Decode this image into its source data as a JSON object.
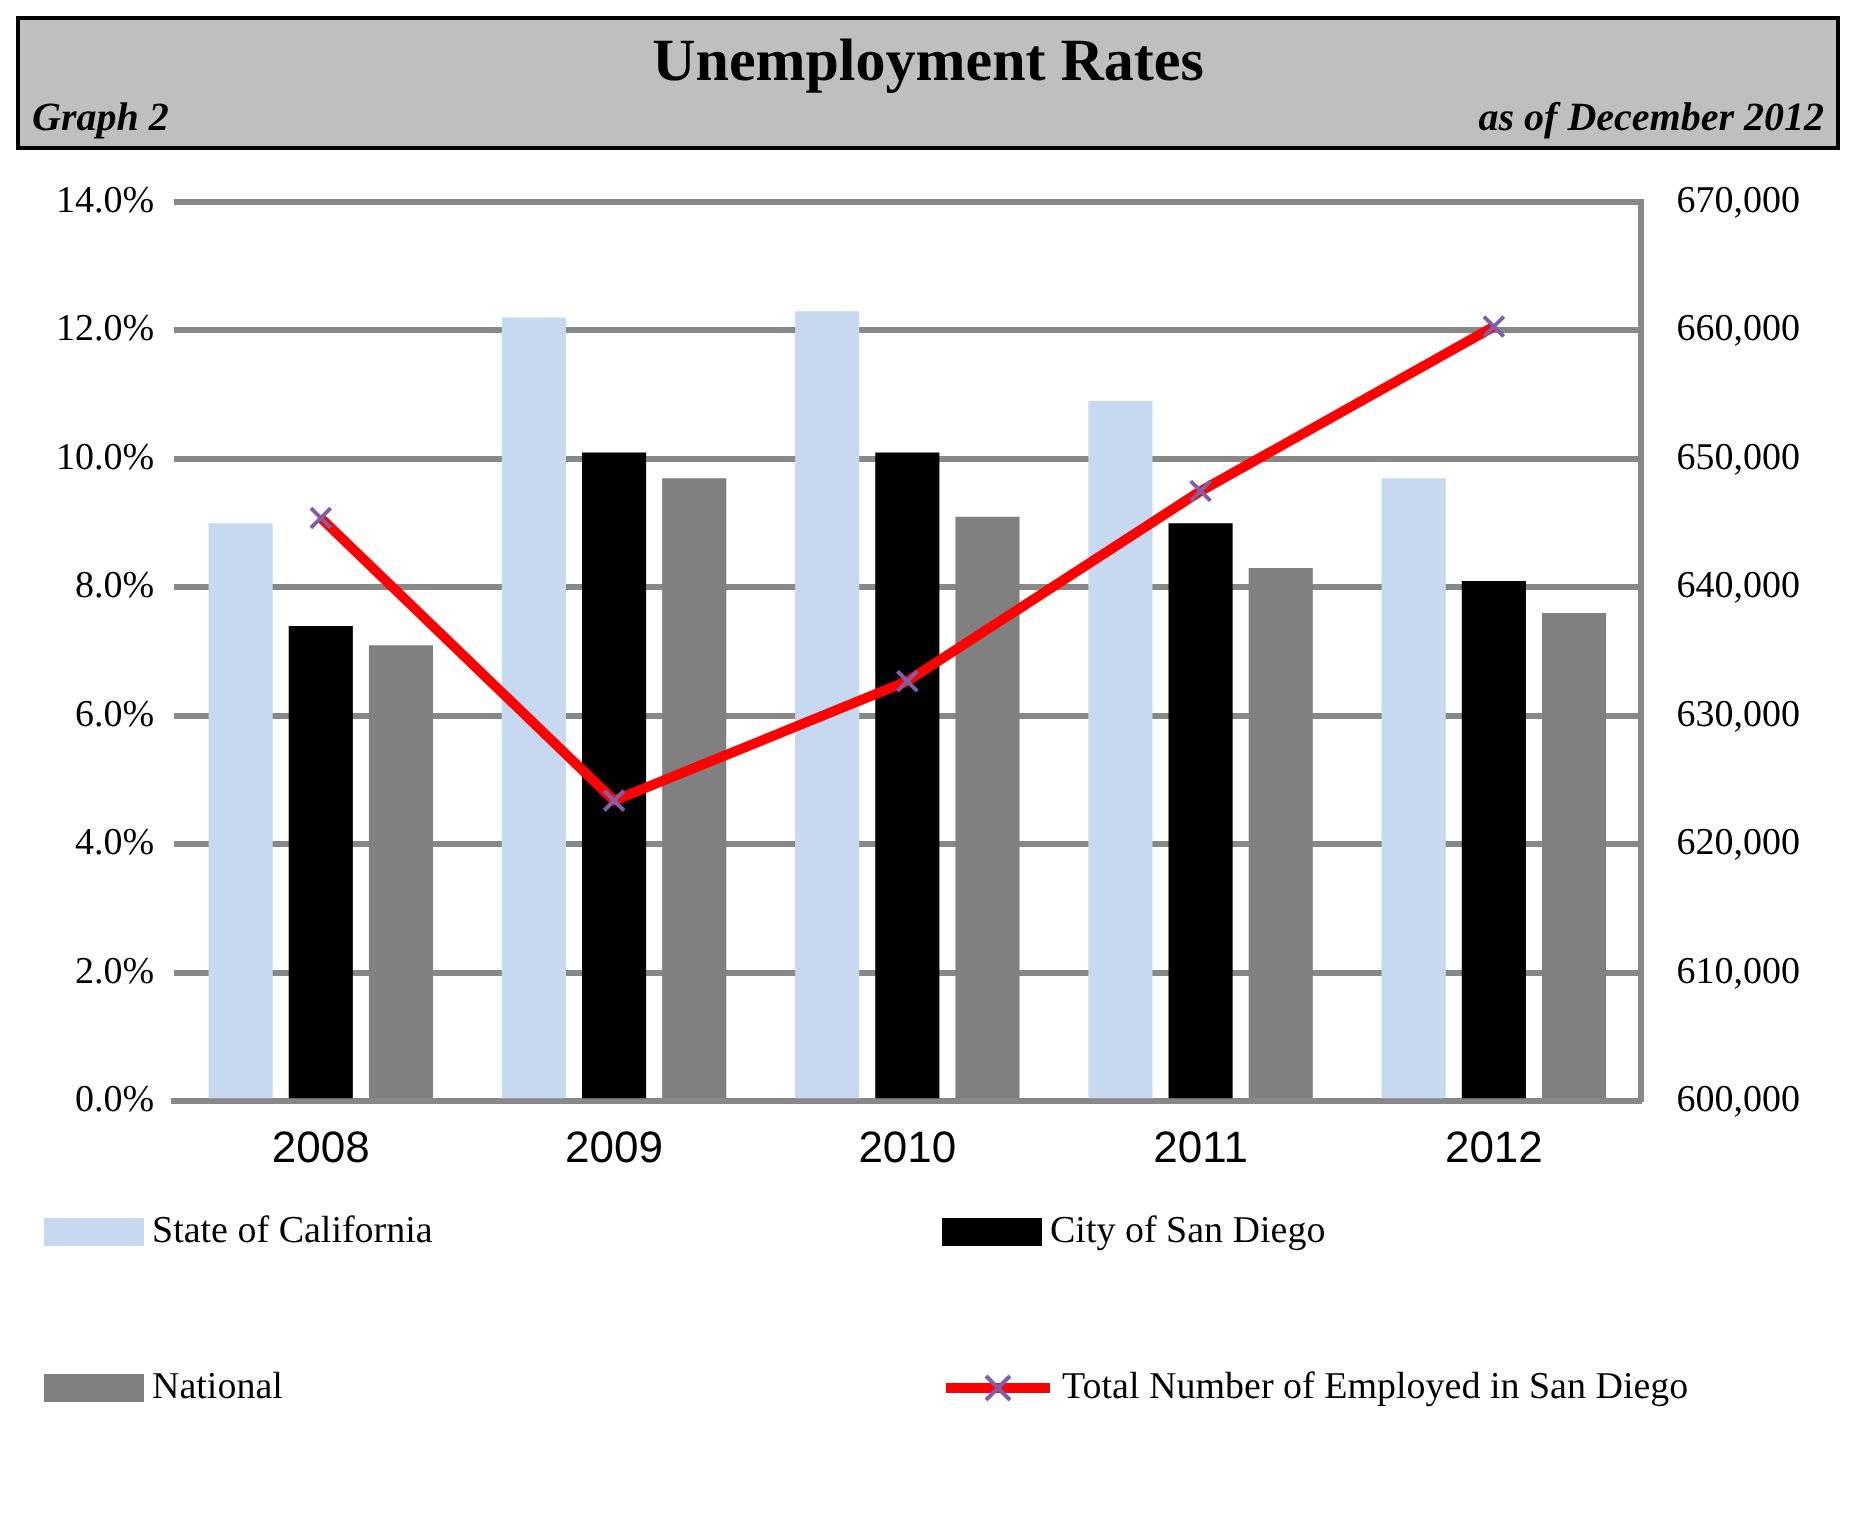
{
  "chart_data": {
    "type": "bar",
    "title": "Unemployment Rates",
    "subtitle": "Graph 2",
    "annotations": [
      "as of December 2012"
    ],
    "categories": [
      "2008",
      "2009",
      "2010",
      "2011",
      "2012"
    ],
    "series": [
      {
        "name": "State of California",
        "color": "#c6d9f1",
        "values": [
          9.0,
          12.2,
          12.3,
          10.9,
          9.7
        ]
      },
      {
        "name": "City of San Diego",
        "color": "#000000",
        "values": [
          7.4,
          10.1,
          10.1,
          9.0,
          8.1
        ]
      },
      {
        "name": "National",
        "color": "#808080",
        "values": [
          7.1,
          9.7,
          9.1,
          8.3,
          7.6
        ]
      },
      {
        "name": "Total Number of Employed in San Diego",
        "type": "line",
        "axis": "y2",
        "color": "#ff0000",
        "marker": "cross",
        "values": [
          645400,
          623400,
          632700,
          647500,
          660300
        ]
      }
    ],
    "ylim": [
      0,
      14
    ],
    "yticks": [
      {
        "value": 0,
        "label": "0.0%"
      },
      {
        "value": 2,
        "label": "2.0%"
      },
      {
        "value": 4,
        "label": "4.0%"
      },
      {
        "value": 6,
        "label": "6.0%"
      },
      {
        "value": 8,
        "label": "8.0%"
      },
      {
        "value": 10,
        "label": "10.0%"
      },
      {
        "value": 12,
        "label": "12.0%"
      },
      {
        "value": 14,
        "label": "14.0%"
      }
    ],
    "y2lim": [
      600000,
      670000
    ],
    "y2ticks": [
      {
        "value": 600000,
        "label": "600,000"
      },
      {
        "value": 610000,
        "label": "610,000"
      },
      {
        "value": 620000,
        "label": "620,000"
      },
      {
        "value": 630000,
        "label": "630,000"
      },
      {
        "value": 640000,
        "label": "640,000"
      },
      {
        "value": 650000,
        "label": "650,000"
      },
      {
        "value": 660000,
        "label": "660,000"
      },
      {
        "value": 670000,
        "label": "670,000"
      }
    ],
    "grid": "y",
    "legend": "bottom"
  }
}
